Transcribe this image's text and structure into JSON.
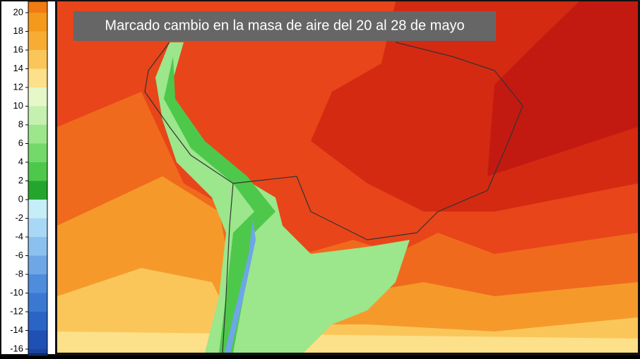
{
  "title": "Marcado cambio en la masa de aire del 20 al 28 de mayo",
  "legend": {
    "ticks": [
      20,
      18,
      16,
      14,
      12,
      10,
      8,
      6,
      4,
      2,
      0,
      -2,
      -4,
      -6,
      -8,
      -10,
      -12,
      -14,
      -16
    ],
    "colors": [
      "#f39a1a",
      "#f7ad33",
      "#fbc659",
      "#fde08a",
      "#e6f7c8",
      "#c4f0b0",
      "#9ce68c",
      "#72d96a",
      "#4dc84b",
      "#24a62e",
      "#c6eef8",
      "#a8d8f5",
      "#8cc0ee",
      "#6ea6e6",
      "#4f8cdc",
      "#3a78d2",
      "#2a64c4",
      "#1f50b4",
      "#1a44a0"
    ]
  }
}
